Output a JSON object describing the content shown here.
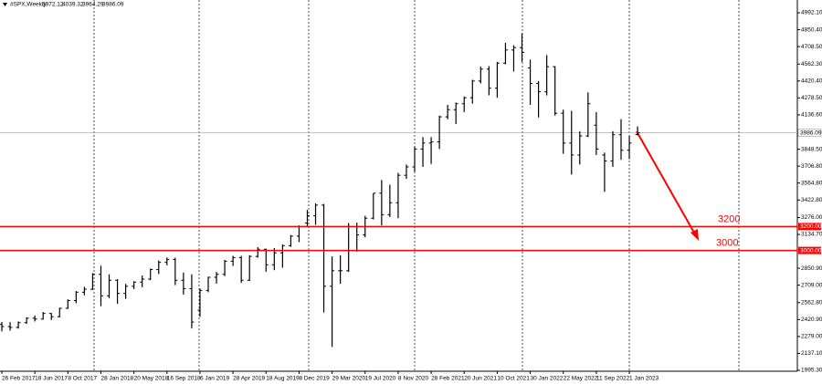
{
  "chart_data": {
    "type": "ohlc",
    "title": "#SPX,Weekly",
    "title_values": [
      3972.12,
      4039.32,
      3964.29,
      3986.09
    ],
    "x": [
      0,
      4,
      8,
      12,
      16,
      20,
      24,
      28,
      32,
      36,
      40,
      44,
      48,
      52,
      56,
      60,
      64,
      68,
      72,
      76,
      80,
      84,
      88,
      92,
      96,
      100,
      104,
      108,
      112,
      116,
      120,
      124,
      128,
      132,
      136,
      140,
      144,
      148,
      152,
      156,
      160,
      164,
      168,
      172,
      176,
      180,
      184,
      188,
      192,
      196,
      200,
      204,
      208,
      212,
      216,
      220,
      224,
      228,
      232,
      236,
      240,
      244,
      248,
      252,
      256,
      260,
      264,
      268,
      272,
      276,
      280,
      284,
      288,
      292,
      296,
      300,
      304,
      308
    ],
    "open": [
      2380,
      2362,
      2355,
      2395,
      2432,
      2425,
      2472,
      2445,
      2515,
      2580,
      2650,
      2675,
      2800,
      2620,
      2750,
      2640,
      2700,
      2735,
      2760,
      2840,
      2900,
      2925,
      2750,
      2680,
      2500,
      2665,
      2775,
      2800,
      2910,
      2940,
      2750,
      2950,
      3010,
      2880,
      2980,
      3040,
      3120,
      3230,
      3290,
      3380,
      2700,
      2830,
      2830,
      3200,
      3130,
      3270,
      3480,
      3300,
      3400,
      3630,
      3700,
      3850,
      3900,
      3910,
      4120,
      4180,
      4230,
      4280,
      4420,
      4520,
      4360,
      4570,
      4680,
      4700,
      4530,
      4400,
      4330,
      4540,
      4150,
      3900,
      3800,
      3960,
      4050,
      3800,
      3750,
      3970,
      3840,
      3972.12
    ],
    "high": [
      2400,
      2400,
      2405,
      2440,
      2454,
      2484,
      2475,
      2520,
      2590,
      2660,
      2695,
      2810,
      2872,
      2800,
      2760,
      2720,
      2742,
      2790,
      2848,
      2916,
      2941,
      2939,
      2815,
      2800,
      2680,
      2780,
      2820,
      2920,
      2955,
      2955,
      2960,
      3028,
      3015,
      3020,
      3050,
      3130,
      3210,
      3340,
      3394,
      3390,
      2950,
      2960,
      3230,
      3233,
      3290,
      3480,
      3590,
      3550,
      3650,
      3720,
      3870,
      3950,
      3950,
      4130,
      4220,
      4240,
      4290,
      4430,
      4540,
      4545,
      4580,
      4740,
      4720,
      4818,
      4600,
      4420,
      4637,
      4545,
      4180,
      4170,
      4000,
      4325,
      4160,
      3820,
      4000,
      4100,
      3960,
      4039.32
    ],
    "low": [
      2322,
      2328,
      2345,
      2385,
      2405,
      2420,
      2417,
      2440,
      2510,
      2557,
      2624,
      2670,
      2533,
      2600,
      2553,
      2594,
      2676,
      2692,
      2750,
      2802,
      2875,
      2710,
      2630,
      2346,
      2444,
      2650,
      2722,
      2785,
      2870,
      2728,
      2745,
      2940,
      2822,
      2835,
      2855,
      3030,
      3070,
      3200,
      3215,
      2480,
      2191,
      2720,
      2820,
      2990,
      3110,
      3260,
      3210,
      3280,
      3270,
      3600,
      3660,
      3700,
      3725,
      3850,
      4100,
      4060,
      4160,
      4230,
      4400,
      4300,
      4280,
      4560,
      4500,
      4580,
      4220,
      4115,
      4300,
      4130,
      3810,
      3636,
      3720,
      3950,
      3800,
      3491,
      3700,
      3760,
      3765,
      3964.29
    ],
    "close": [
      2362,
      2355,
      2395,
      2432,
      2425,
      2472,
      2445,
      2515,
      2580,
      2650,
      2675,
      2800,
      2620,
      2750,
      2640,
      2700,
      2735,
      2760,
      2840,
      2900,
      2925,
      2750,
      2680,
      2400,
      2665,
      2775,
      2800,
      2910,
      2940,
      2750,
      2950,
      3010,
      2880,
      2980,
      3040,
      3120,
      3200,
      3290,
      3380,
      2700,
      2830,
      2830,
      3200,
      3130,
      3270,
      3480,
      3300,
      3400,
      3630,
      3700,
      3850,
      3900,
      3910,
      4120,
      4180,
      4230,
      4280,
      4420,
      4520,
      4360,
      4570,
      4680,
      4700,
      4660,
      4400,
      4330,
      4540,
      4150,
      3900,
      3800,
      3960,
      4230,
      3850,
      3750,
      3970,
      3840,
      3900,
      3986.09
    ],
    "color": "#000000",
    "xlim": [
      -0.885,
      385.4
    ],
    "xticks": [
      {
        "value": 0,
        "label": "26 Feb 2017"
      },
      {
        "value": 16,
        "label": "18 Jun 2017"
      },
      {
        "value": 32,
        "label": "8 Oct 2017"
      },
      {
        "value": 48,
        "label": "28 Jan 2018"
      },
      {
        "value": 64,
        "label": "20 May 2018"
      },
      {
        "value": 80,
        "label": "16 Sep 2018"
      },
      {
        "value": 96,
        "label": "6 Jan 2019"
      },
      {
        "value": 112,
        "label": "28 Apr 2019"
      },
      {
        "value": 128,
        "label": "18 Aug 2019"
      },
      {
        "value": 144,
        "label": "8 Dec 2019"
      },
      {
        "value": 160,
        "label": "29 Mar 2020"
      },
      {
        "value": 176,
        "label": "19 Jul 2020"
      },
      {
        "value": 192,
        "label": "8 Nov 2020"
      },
      {
        "value": 208,
        "label": "28 Feb 2021"
      },
      {
        "value": 224,
        "label": "20 Jun 2021"
      },
      {
        "value": 240,
        "label": "10 Oct 2021"
      },
      {
        "value": 256,
        "label": "30 Jan 2022"
      },
      {
        "value": 272,
        "label": "22 May 2022"
      },
      {
        "value": 288,
        "label": "11 Sep 2022"
      },
      {
        "value": 304,
        "label": "1 Jan 2023"
      }
    ],
    "ylim": [
      1987.7,
      5099.1
    ],
    "yticks": [
      {
        "value": 4992.1,
        "label": "4992.10"
      },
      {
        "value": 4850.4,
        "label": "4850.40"
      },
      {
        "value": 4708.5,
        "label": "4708.50"
      },
      {
        "value": 4562.3,
        "label": "4562.30"
      },
      {
        "value": 4420.4,
        "label": "4420.40"
      },
      {
        "value": 4278.5,
        "label": "4278.50"
      },
      {
        "value": 4136.6,
        "label": "4136.60"
      },
      {
        "value": 3848.5,
        "label": "3848.50"
      },
      {
        "value": 3706.8,
        "label": "3706.80"
      },
      {
        "value": 3564.8,
        "label": "3564.80"
      },
      {
        "value": 3422.8,
        "label": "3422.80"
      },
      {
        "value": 3276,
        "label": "3276.00"
      },
      {
        "value": 3134.7,
        "label": "3134.70"
      },
      {
        "value": 2850.9,
        "label": "2850.90"
      },
      {
        "value": 2709,
        "label": "2709.00"
      },
      {
        "value": 2562.8,
        "label": "2562.80"
      },
      {
        "value": 2420.9,
        "label": "2420.90"
      },
      {
        "value": 2279,
        "label": "2279.00"
      },
      {
        "value": 2137.1,
        "label": "2137.10"
      },
      {
        "value": 1995.3,
        "label": "1995.30"
      }
    ],
    "last_price": 3986.09,
    "levels": [
      {
        "value": 3200,
        "label": "3200.00",
        "text": "3200",
        "color": "#ff0000"
      },
      {
        "value": 3000,
        "label": "3000.00",
        "text": "3000",
        "color": "#ff0000"
      }
    ]
  }
}
